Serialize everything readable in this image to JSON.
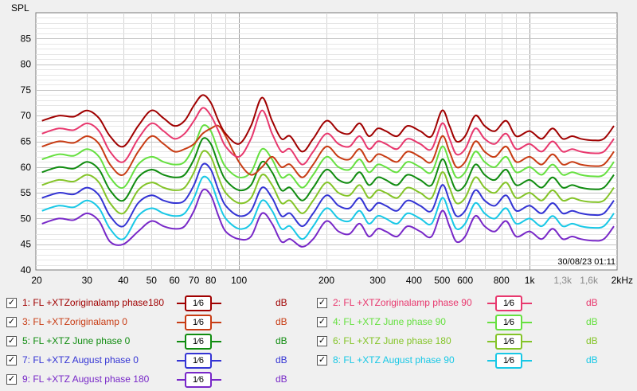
{
  "chart_data": {
    "type": "line",
    "title": "",
    "ylabel": "SPL",
    "xunit": "Hz",
    "xscale": "log",
    "xlim": [
      20,
      2000
    ],
    "ylim": [
      40,
      90
    ],
    "yticks": [
      40,
      45,
      50,
      55,
      60,
      65,
      70,
      75,
      80,
      85
    ],
    "xticks": [
      {
        "v": 20,
        "label": "20",
        "dim": false
      },
      {
        "v": 30,
        "label": "30",
        "dim": false
      },
      {
        "v": 40,
        "label": "40",
        "dim": false
      },
      {
        "v": 50,
        "label": "50",
        "dim": false
      },
      {
        "v": 60,
        "label": "60",
        "dim": false
      },
      {
        "v": 70,
        "label": "70",
        "dim": false
      },
      {
        "v": 80,
        "label": "80",
        "dim": false
      },
      {
        "v": 100,
        "label": "100",
        "dim": false
      },
      {
        "v": 200,
        "label": "200",
        "dim": false
      },
      {
        "v": 300,
        "label": "300",
        "dim": false
      },
      {
        "v": 400,
        "label": "400",
        "dim": false
      },
      {
        "v": 500,
        "label": "500",
        "dim": false
      },
      {
        "v": 600,
        "label": "600",
        "dim": false
      },
      {
        "v": 800,
        "label": "800",
        "dim": false
      },
      {
        "v": 1000,
        "label": "1k",
        "dim": false
      },
      {
        "v": 1300,
        "label": "1,3k",
        "dim": true
      },
      {
        "v": 1600,
        "label": "1,6k",
        "dim": true
      },
      {
        "v": 2000,
        "label": "2kHz",
        "dim": false
      }
    ],
    "timestamp": "30/08/23 01:11",
    "x": [
      21,
      24,
      27,
      30,
      33,
      36,
      40,
      45,
      50,
      55,
      60,
      65,
      70,
      75,
      80,
      85,
      90,
      100,
      110,
      120,
      130,
      140,
      150,
      165,
      180,
      200,
      220,
      240,
      260,
      280,
      300,
      320,
      350,
      380,
      420,
      460,
      500,
      530,
      560,
      600,
      650,
      700,
      760,
      830,
      900,
      1000,
      1100,
      1200,
      1300,
      1400,
      1500,
      1650,
      1800,
      1950
    ],
    "series": [
      {
        "name": "1: FL +XTZoriginalamp phase180",
        "color": "#a00000",
        "values": [
          69,
          70,
          69.8,
          71,
          69.5,
          66,
          64,
          68,
          71,
          69.5,
          68,
          69,
          72,
          74,
          72.5,
          69,
          66.5,
          64.5,
          68,
          73.5,
          69,
          65.5,
          66,
          63,
          65.5,
          69,
          67,
          66.5,
          68.5,
          66,
          67.5,
          67,
          66,
          68,
          67,
          66,
          71,
          68,
          65,
          66,
          70,
          68,
          67,
          69,
          66,
          67,
          65.5,
          67.5,
          65.5,
          66,
          65.5,
          65.2,
          65.5,
          68
        ]
      },
      {
        "name": "2: FL +XTZoriginalamp phase 90",
        "color": "#e8386e",
        "values": [
          66.5,
          67.5,
          67.2,
          68.5,
          67,
          63,
          61,
          65.5,
          68.5,
          67,
          65.5,
          66.5,
          69,
          71.5,
          70,
          67,
          64,
          62,
          65.5,
          71,
          66.5,
          63,
          63.5,
          60.5,
          63,
          66.5,
          64.5,
          64,
          66,
          63.5,
          65,
          64.5,
          63.5,
          65.5,
          64.5,
          63.5,
          68.5,
          65.5,
          62.5,
          63.5,
          67.5,
          65.5,
          64.5,
          66.5,
          63.5,
          64.5,
          63,
          65,
          63,
          63.5,
          63,
          62.7,
          63,
          65.5
        ]
      },
      {
        "name": "3: FL +XTZoriginalamp 0",
        "color": "#c83c14",
        "values": [
          64,
          65,
          64.7,
          66,
          64.5,
          60.5,
          58.5,
          63,
          66,
          64.5,
          63,
          63.5,
          64.5,
          66.5,
          67.5,
          68,
          66,
          61,
          58.5,
          60,
          62,
          60,
          60.5,
          58,
          60.5,
          64,
          62,
          61.5,
          63.5,
          61,
          62.5,
          62,
          61,
          63,
          62,
          61,
          66,
          63,
          60,
          61,
          65,
          63,
          62,
          64,
          61,
          62,
          60.5,
          62.5,
          60.5,
          61,
          60.5,
          60.2,
          60.5,
          63
        ]
      },
      {
        "name": "4: FL +XTZ June phase 90",
        "color": "#66e040",
        "values": [
          61.5,
          62.5,
          62.2,
          63.5,
          62,
          58,
          56,
          60.5,
          62,
          61,
          60.5,
          61,
          64,
          68,
          67,
          63,
          60,
          58,
          59,
          63.5,
          61.5,
          58,
          58.5,
          56,
          58.5,
          62,
          60,
          59.5,
          61.5,
          59,
          60.5,
          60,
          59,
          61,
          60,
          59,
          64,
          61,
          58,
          59,
          63,
          61,
          60,
          62,
          59,
          60,
          58.5,
          60.5,
          58.5,
          59,
          58.5,
          58.2,
          58.5,
          61
        ]
      },
      {
        "name": "5: FL +XTZ June phase 0",
        "color": "#108c10",
        "values": [
          59,
          60,
          59.7,
          61,
          59.5,
          55.5,
          53.5,
          58,
          59.5,
          58.5,
          58,
          58.5,
          61.5,
          65.5,
          64.5,
          60.5,
          57.5,
          55.5,
          56.5,
          61,
          59,
          55.5,
          56,
          53.5,
          56,
          59.5,
          57.5,
          57,
          59,
          56.5,
          58,
          57.5,
          56.5,
          58.5,
          57.5,
          56.5,
          61.5,
          58.5,
          55.5,
          56.5,
          60.5,
          58.5,
          57.5,
          59.5,
          56.5,
          57.5,
          56,
          58,
          56,
          56.5,
          56,
          55.7,
          56,
          58.5
        ]
      },
      {
        "name": "6: FL +XTZ June phase 180",
        "color": "#84c428",
        "values": [
          56.5,
          57.5,
          57.2,
          58.5,
          57,
          53,
          51,
          55.5,
          57,
          56,
          55.5,
          56,
          59,
          63,
          62,
          58,
          55,
          53,
          54,
          58.5,
          56.5,
          53,
          53.5,
          51,
          53.5,
          57,
          55,
          54.5,
          56.5,
          54,
          55.5,
          55,
          54,
          56,
          55,
          54,
          59,
          56,
          53,
          54,
          58,
          56,
          55,
          57,
          54,
          55,
          53.5,
          55.5,
          53.5,
          54,
          53.5,
          53.2,
          53.5,
          56
        ]
      },
      {
        "name": "7: FL +XTZ August phase 0",
        "color": "#3434d4",
        "values": [
          54,
          55,
          54.7,
          56,
          54.5,
          50.5,
          48.5,
          53,
          54.5,
          53.5,
          53,
          53.5,
          56.5,
          60.5,
          59.5,
          55.5,
          52.5,
          50.5,
          51.5,
          56,
          54,
          50.5,
          51,
          48.5,
          51,
          54.5,
          52.5,
          52,
          54,
          51.5,
          53,
          52.5,
          51.5,
          53.5,
          52.5,
          51.5,
          56.5,
          53.5,
          50.5,
          51.5,
          55.5,
          53.5,
          52.5,
          54.5,
          51.5,
          52.5,
          51,
          53,
          51,
          51.5,
          51,
          50.7,
          51,
          53.5
        ]
      },
      {
        "name": "8: FL +XTZ August phase 90",
        "color": "#18c8e6",
        "values": [
          51.5,
          52.5,
          52.2,
          53.5,
          52,
          48,
          46,
          50.5,
          52,
          51,
          50.5,
          51,
          54,
          58,
          57,
          53,
          50,
          48,
          49,
          53.5,
          51.5,
          48,
          48.5,
          46,
          48.5,
          52,
          50,
          49.5,
          51.5,
          49,
          50.5,
          50,
          49,
          51,
          50,
          49,
          54,
          51,
          48,
          49,
          53,
          51,
          50,
          52,
          49,
          50,
          48.5,
          50.5,
          48.5,
          49,
          48.5,
          48.2,
          48.5,
          51
        ]
      },
      {
        "name": "9: FL +XTZ August phase 180",
        "color": "#7828c8",
        "values": [
          49,
          50,
          49.7,
          51,
          49.5,
          45.5,
          45,
          47.5,
          49.5,
          48.5,
          48,
          48.5,
          51.5,
          55.5,
          54.5,
          50.5,
          47.5,
          46,
          46.5,
          51,
          49,
          45.5,
          46,
          44.5,
          46,
          49.5,
          47.5,
          47,
          49,
          46.5,
          48,
          47.5,
          46.5,
          48.5,
          47.5,
          46.5,
          51.5,
          48.5,
          45.5,
          46.5,
          50.5,
          48.5,
          47.5,
          49.5,
          46.5,
          47.5,
          46,
          48,
          46,
          46.5,
          46,
          45.7,
          46,
          48.5
        ]
      }
    ]
  },
  "legend": {
    "smoothing_label": "1⁄6",
    "unit": "dB",
    "check_glyph": "✓"
  }
}
